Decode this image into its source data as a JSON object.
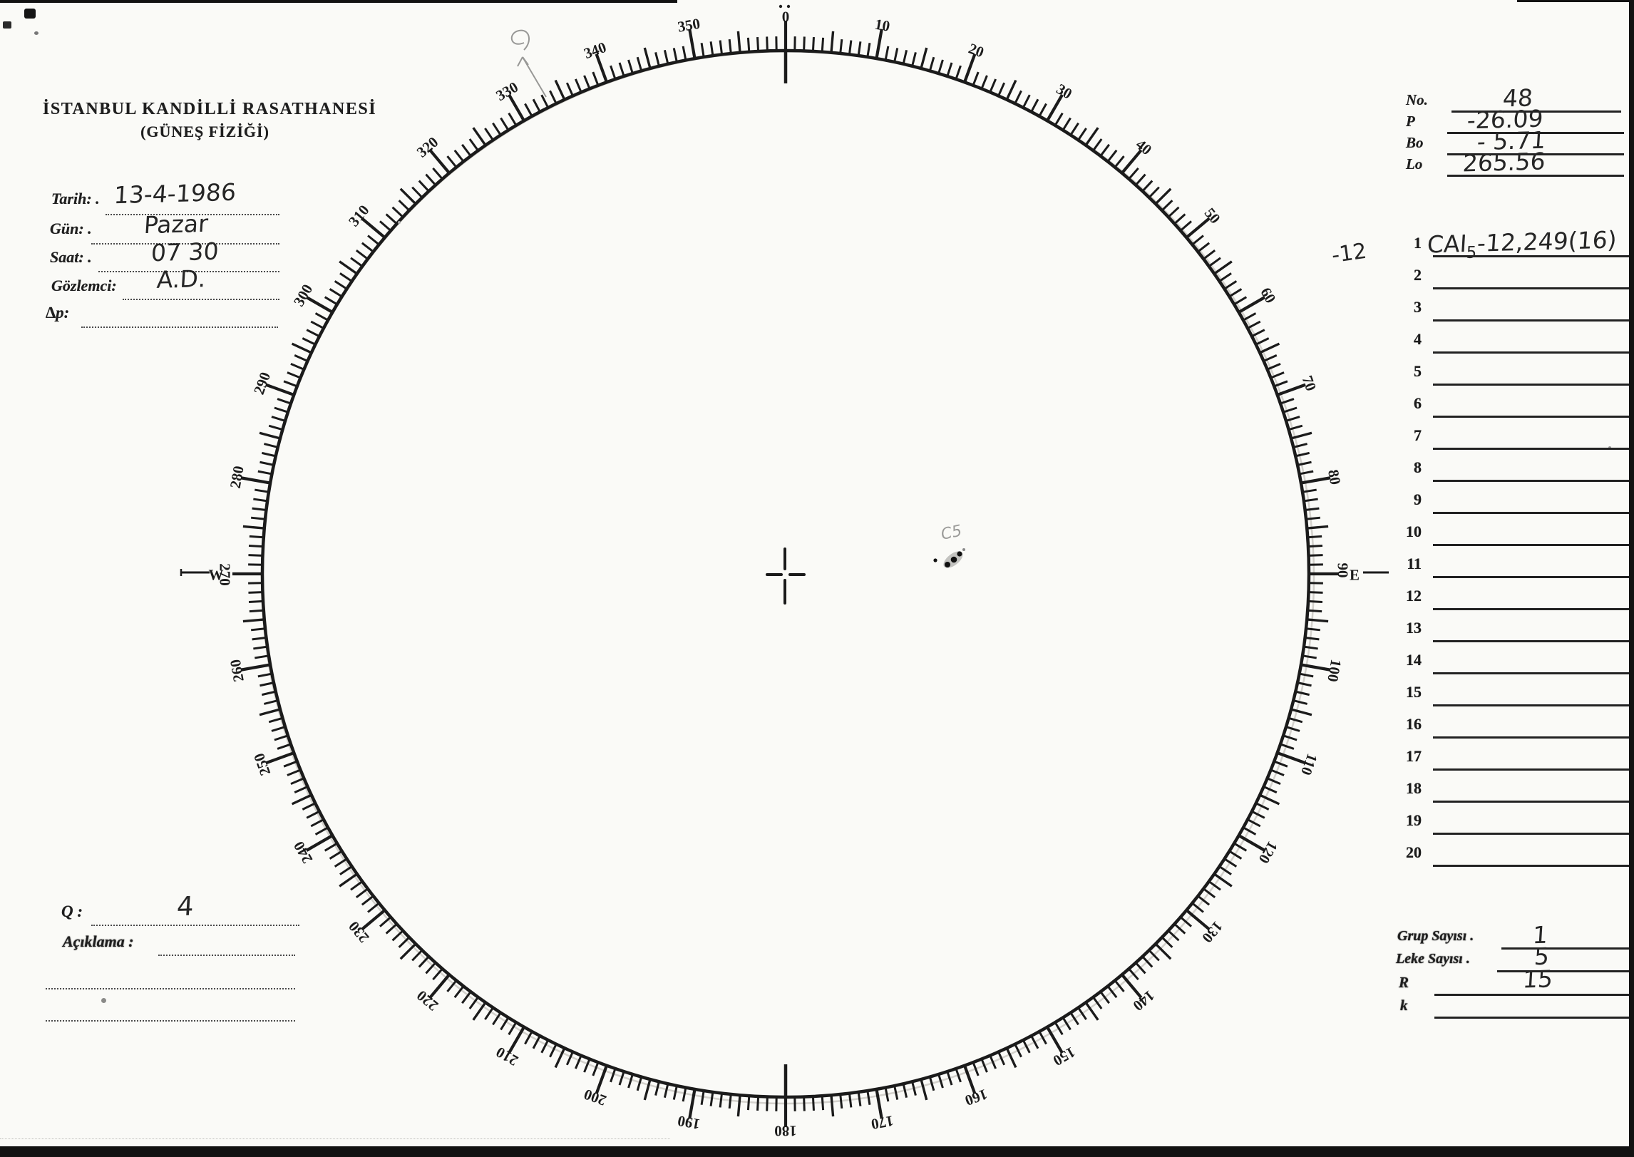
{
  "header": {
    "line1": "İSTANBUL KANDİLLİ RASATHANESİ",
    "line2": "(GÜNEŞ FİZİĞİ)"
  },
  "observation_fields": [
    {
      "label": "Tarih: .",
      "value": "13-4-1986"
    },
    {
      "label": "Gün: .",
      "value": "Pazar"
    },
    {
      "label": "Saat: .",
      "value": "07 30"
    },
    {
      "label": "Gözlemci:",
      "value": "A.D."
    },
    {
      "label": "∆p:",
      "value": ""
    }
  ],
  "ephemeris": {
    "rows": [
      {
        "label": "No.",
        "value": "48"
      },
      {
        "label": "P",
        "value": "-26.09"
      },
      {
        "label": "Bo",
        "value": "- 5.71"
      },
      {
        "label": "Lo",
        "value": "265.56"
      }
    ]
  },
  "group_list": {
    "numbers": [
      "1",
      "2",
      "3",
      "4",
      "5",
      "6",
      "7",
      "8",
      "9",
      "10",
      "11",
      "12",
      "13",
      "14",
      "15",
      "16",
      "17",
      "18",
      "19",
      "20"
    ],
    "entry1": {
      "margin_note": "-12",
      "pre": "CAI",
      "sub": "5",
      "post": "-12,249(16)"
    }
  },
  "summary": {
    "rows": [
      {
        "label": "Grup Sayısı .",
        "value": "1"
      },
      {
        "label": "Leke Sayısı .",
        "value": "5"
      },
      {
        "label": "R",
        "value": "15"
      },
      {
        "label": "k",
        "value": ""
      }
    ]
  },
  "notes": {
    "q_label": "Q :",
    "q_value": "4",
    "aciklama_label": "Açıklama :"
  },
  "dial": {
    "degree_labels": [
      "0",
      "10",
      "20",
      "30",
      "40",
      "50",
      "60",
      "70",
      "80",
      "90",
      "100",
      "110",
      "120",
      "130",
      "140",
      "150",
      "160",
      "170",
      "180",
      "190",
      "200",
      "210",
      "220",
      "230",
      "240",
      "250",
      "260",
      "270",
      "280",
      "290",
      "300",
      "310",
      "320",
      "330",
      "340",
      "350"
    ],
    "west": "W",
    "east": "E",
    "minor_step_deg": 1,
    "medium_step_deg": 5,
    "major_step_deg": 10
  },
  "annotations": {
    "sunspot_label": "C5"
  }
}
